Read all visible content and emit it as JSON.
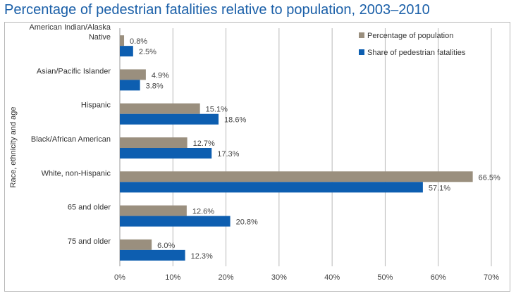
{
  "title": "Percentage of pedestrian fatalities relative to population, 2003–2010",
  "chart_data": {
    "type": "bar",
    "orientation": "horizontal",
    "title": "Percentage of pedestrian fatalities relative to population, 2003–2010",
    "ylabel": "Race, ethnicity and age",
    "xlabel": "",
    "categories": [
      [
        "American Indian/Alaska",
        "Native"
      ],
      [
        "Asian/Pacific Islander"
      ],
      [
        "Hispanic"
      ],
      [
        "Black/African American"
      ],
      [
        "White, non-Hispanic"
      ],
      [
        "65 and older"
      ],
      [
        "75 and older"
      ]
    ],
    "series": [
      {
        "name": "Percentage of population",
        "color": "#9a8f7e",
        "values": [
          0.8,
          4.9,
          15.1,
          12.7,
          66.5,
          12.6,
          6.0
        ],
        "labels": [
          "0.8%",
          "4.9%",
          "15.1%",
          "12.7%",
          "66.5%",
          "12.6%",
          "6.0%"
        ]
      },
      {
        "name": "Share of pedestrian fatalities",
        "color": "#0d5eb0",
        "values": [
          2.5,
          3.8,
          18.6,
          17.3,
          57.1,
          20.8,
          12.3
        ],
        "labels": [
          "2.5%",
          "3.8%",
          "18.6%",
          "17.3%",
          "57.1%",
          "20.8%",
          "12.3%"
        ]
      }
    ],
    "xlim": [
      0,
      70
    ],
    "xticks": [
      0,
      10,
      20,
      30,
      40,
      50,
      60,
      70
    ],
    "xtick_labels": [
      "0%",
      "10%",
      "20%",
      "30%",
      "40%",
      "50%",
      "60%",
      "70%"
    ],
    "grid": "vertical",
    "legend_position": "top-right"
  }
}
